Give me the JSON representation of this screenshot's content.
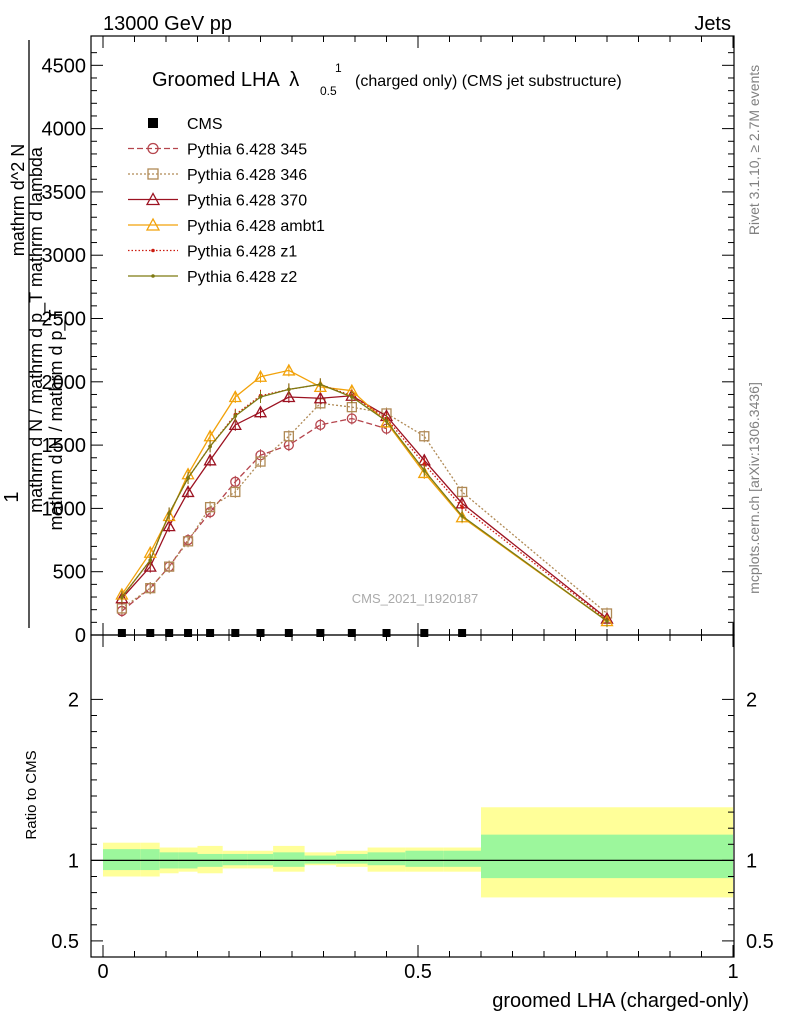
{
  "header": {
    "left": "13000 GeV pp",
    "right": "Jets"
  },
  "side_labels": {
    "rivet": "Rivet 3.1.10, ≥ 2.7M events",
    "mcplots": "mcplots.cern.ch [arXiv:1306.3436]"
  },
  "chart_data": [
    {
      "type": "line",
      "title_main": "Groomed LHA",
      "title_lambda": "λ",
      "title_sup": "1",
      "title_sub": "0.5",
      "title_rest": "(charged only) (CMS jet substructure)",
      "watermark": "CMS_2021_I1920187",
      "ylabel_top": "1",
      "ylabel_line1": "mathrm d N / mathrm d p_T mathrm d lambda",
      "ylabel_line2": "mathrm d^2 N",
      "ylabel_line3": "mathrm d N / mathrm d p_T",
      "xlim": [
        0,
        1
      ],
      "ylim": [
        0,
        4700
      ],
      "yticks": [
        0,
        500,
        1000,
        1500,
        2000,
        2500,
        3000,
        3500,
        4000,
        4500
      ],
      "ytick_labels": [
        "0",
        "500",
        "1000",
        "1500",
        "2000",
        "2500",
        "3000",
        "3500",
        "4000",
        "4500"
      ],
      "x": [
        0.03,
        0.075,
        0.105,
        0.135,
        0.17,
        0.21,
        0.25,
        0.295,
        0.345,
        0.395,
        0.45,
        0.51,
        0.57,
        0.8
      ],
      "series": [
        {
          "name": "CMS",
          "color": "#000000",
          "marker": "square-filled",
          "dash": "none",
          "values": [
            5,
            5,
            5,
            5,
            5,
            5,
            5,
            5,
            5,
            5,
            5,
            5,
            5,
            null
          ]
        },
        {
          "name": "Pythia 6.428 345",
          "color": "#b5454d",
          "marker": "circle-open",
          "dash": "6,3",
          "values": [
            190,
            370,
            540,
            750,
            970,
            1210,
            1420,
            1500,
            1660,
            1710,
            1630,
            null,
            null,
            null
          ]
        },
        {
          "name": "Pythia 6.428 346",
          "color": "#b08a56",
          "marker": "square-open",
          "dash": "2,2",
          "values": [
            210,
            370,
            540,
            740,
            1010,
            1130,
            1370,
            1570,
            1830,
            1800,
            1750,
            1570,
            1130,
            170
          ]
        },
        {
          "name": "Pythia 6.428 370",
          "color": "#9c1221",
          "marker": "triangle-open",
          "dash": "none",
          "values": [
            290,
            540,
            860,
            1130,
            1380,
            1660,
            1760,
            1880,
            1870,
            1890,
            1730,
            1380,
            1040,
            130
          ]
        },
        {
          "name": "Pythia 6.428 ambt1",
          "color": "#f2a20a",
          "marker": "triangle-open",
          "dash": "none",
          "values": [
            320,
            650,
            940,
            1270,
            1570,
            1880,
            2040,
            2090,
            1960,
            1930,
            1680,
            1280,
            930,
            110
          ]
        },
        {
          "name": "Pythia 6.428 z1",
          "color": "#cc1c10",
          "marker": "dot",
          "dash": "1.5,2",
          "values": [
            300,
            590,
            960,
            1240,
            1490,
            1740,
            1890,
            1940,
            1980,
            1890,
            1710,
            1350,
            1010,
            120
          ]
        },
        {
          "name": "Pythia 6.428 z2",
          "color": "#7e7a12",
          "marker": "dot",
          "dash": "none",
          "values": [
            300,
            590,
            960,
            1240,
            1490,
            1730,
            1880,
            1940,
            1980,
            1880,
            1690,
            1300,
            940,
            110
          ]
        }
      ]
    },
    {
      "type": "area",
      "ylabel": "Ratio to CMS",
      "xlabel": "groomed LHA (charged-only)",
      "xlim": [
        0,
        1
      ],
      "ylim": [
        0.4,
        2.4
      ],
      "yticks": [
        0.5,
        1,
        2
      ],
      "ytick_labels": [
        "0.5",
        "1",
        "2"
      ],
      "xticks": [
        0,
        0.5,
        1
      ],
      "xtick_labels": [
        "0",
        "0.5",
        "1"
      ],
      "bin_edges": [
        0,
        0.06,
        0.09,
        0.12,
        0.15,
        0.19,
        0.23,
        0.27,
        0.32,
        0.37,
        0.42,
        0.48,
        0.54,
        0.6,
        1.0
      ],
      "bins": [
        {
          "inner": [
            0.94,
            1.07
          ],
          "outer": [
            0.9,
            1.11
          ]
        },
        {
          "inner": [
            0.94,
            1.07
          ],
          "outer": [
            0.9,
            1.11
          ]
        },
        {
          "inner": [
            0.95,
            1.05
          ],
          "outer": [
            0.92,
            1.08
          ]
        },
        {
          "inner": [
            0.95,
            1.05
          ],
          "outer": [
            0.93,
            1.08
          ]
        },
        {
          "inner": [
            0.96,
            1.04
          ],
          "outer": [
            0.92,
            1.09
          ]
        },
        {
          "inner": [
            0.97,
            1.04
          ],
          "outer": [
            0.95,
            1.06
          ]
        },
        {
          "inner": [
            0.97,
            1.04
          ],
          "outer": [
            0.95,
            1.06
          ]
        },
        {
          "inner": [
            0.96,
            1.05
          ],
          "outer": [
            0.93,
            1.09
          ]
        },
        {
          "inner": [
            0.98,
            1.03
          ],
          "outer": [
            0.97,
            1.05
          ]
        },
        {
          "inner": [
            0.98,
            1.04
          ],
          "outer": [
            0.96,
            1.06
          ]
        },
        {
          "inner": [
            0.97,
            1.05
          ],
          "outer": [
            0.93,
            1.08
          ]
        },
        {
          "inner": [
            0.96,
            1.06
          ],
          "outer": [
            0.93,
            1.08
          ]
        },
        {
          "inner": [
            0.96,
            1.06
          ],
          "outer": [
            0.93,
            1.08
          ]
        },
        {
          "inner": [
            0.89,
            1.16
          ],
          "outer": [
            0.77,
            1.33
          ]
        }
      ],
      "band_colors": {
        "inner": "#9cf79c",
        "outer": "#ffff99"
      },
      "reference_line": 1
    }
  ]
}
